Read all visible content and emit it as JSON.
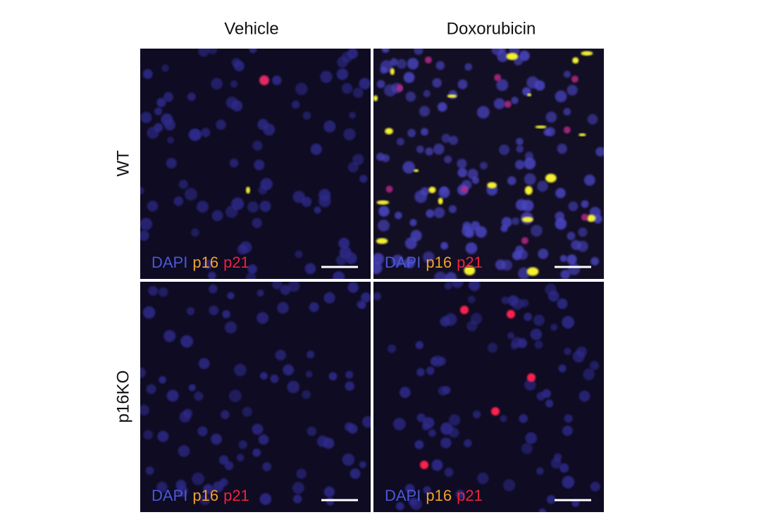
{
  "figure": {
    "columns": [
      "Vehicle",
      "Doxorubicin"
    ],
    "rows": [
      "WT",
      "p16KO"
    ],
    "panels": [
      {
        "labels": [
          "DAPI",
          "p16",
          "p21"
        ]
      },
      {
        "labels": [
          "DAPI",
          "p16",
          "p21"
        ]
      },
      {
        "labels": [
          "DAPI",
          "p16",
          "p21"
        ]
      },
      {
        "labels": [
          "DAPI",
          "p16",
          "p21"
        ]
      }
    ]
  }
}
